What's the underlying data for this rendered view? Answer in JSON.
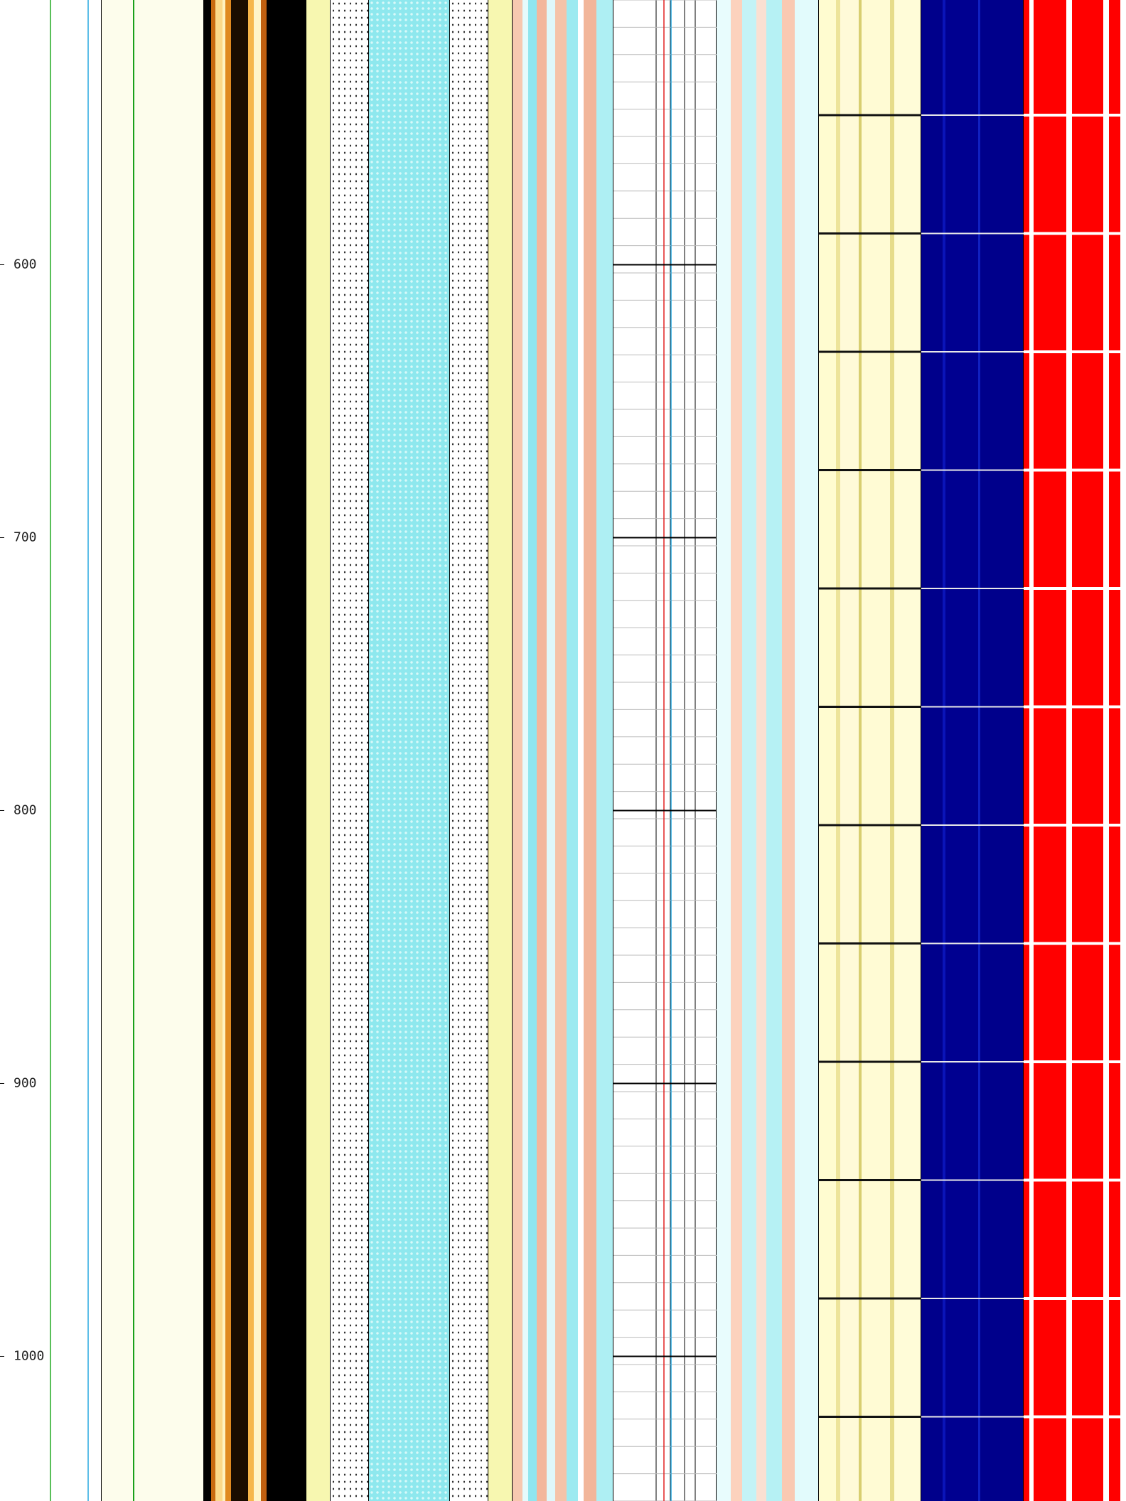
{
  "chart_data": {
    "type": "well_log",
    "ylim": [
      503,
      1053
    ],
    "yticks": [
      600,
      700,
      800,
      900,
      1000
    ]
  }
}
